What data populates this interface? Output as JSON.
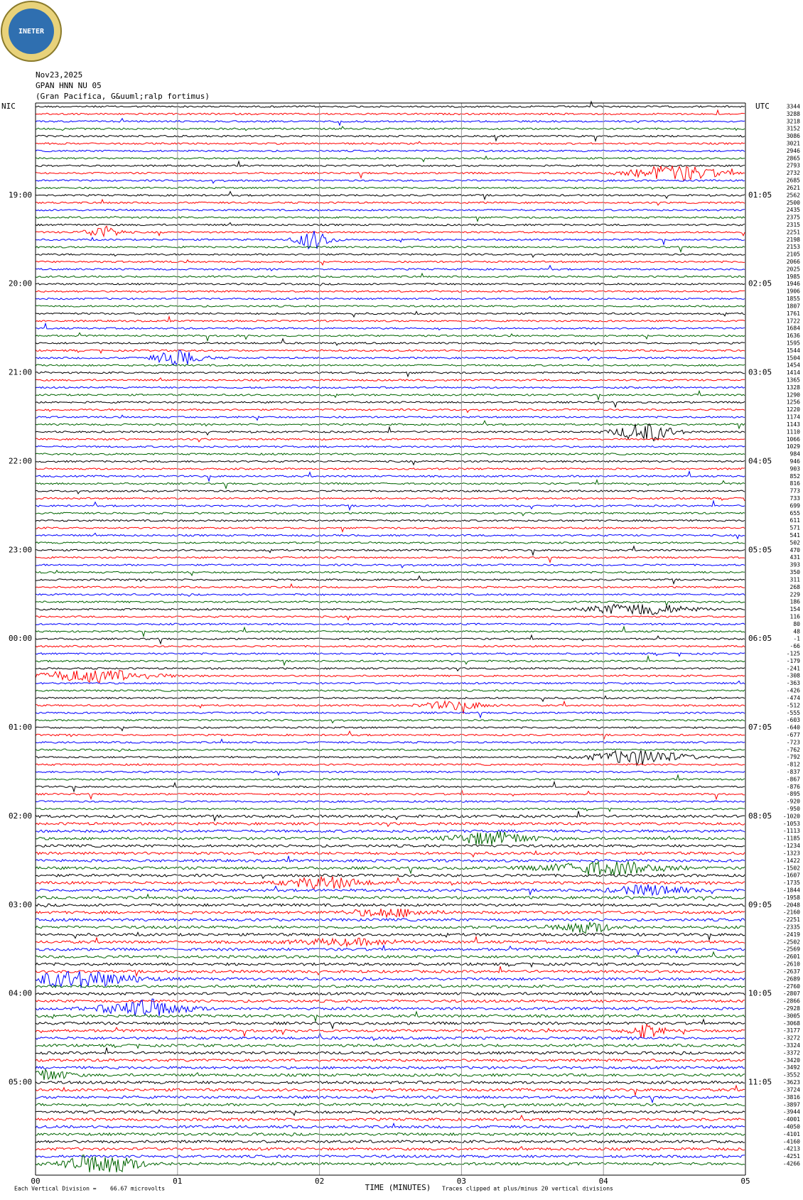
{
  "logo": {
    "text": "INETER"
  },
  "header": {
    "date": "Nov23,2025",
    "station": "GPAN HNN NU 05",
    "location": "(Gran Pacifica, G&uuml;ralp fortimus)"
  },
  "left_axis": {
    "title": "NIC",
    "labels": [
      "19:00",
      "20:00",
      "21:00",
      "22:00",
      "23:00",
      "00:00",
      "01:00",
      "02:00",
      "03:00",
      "04:00",
      "05:00"
    ]
  },
  "right_axis": {
    "title": "UTC",
    "labels": [
      "01:05",
      "02:05",
      "03:05",
      "04:05",
      "05:05",
      "06:05",
      "07:05",
      "08:05",
      "09:05",
      "10:05",
      "11:05"
    ]
  },
  "trace_offsets": [
    3344,
    3288,
    3218,
    3152,
    3086,
    3021,
    2946,
    2865,
    2793,
    2732,
    2685,
    2621,
    2562,
    2500,
    2435,
    2375,
    2315,
    2251,
    2198,
    2153,
    2105,
    2066,
    2025,
    1985,
    1946,
    1906,
    1855,
    1807,
    1761,
    1722,
    1684,
    1636,
    1595,
    1544,
    1504,
    1454,
    1414,
    1365,
    1328,
    1290,
    1256,
    1220,
    1174,
    1143,
    1110,
    1066,
    1029,
    984,
    946,
    903,
    852,
    816,
    773,
    733,
    699,
    655,
    611,
    571,
    541,
    502,
    470,
    431,
    393,
    350,
    311,
    268,
    229,
    186,
    154,
    116,
    80,
    48,
    -1,
    -66,
    -125,
    -179,
    -241,
    -308,
    -363,
    -426,
    -474,
    -512,
    -555,
    -603,
    -640,
    -677,
    -723,
    -762,
    -792,
    -812,
    -837,
    -867,
    -876,
    -895,
    -920,
    -950,
    -1020,
    -1053,
    -1113,
    -1185,
    -1234,
    -1323,
    -1422,
    -1502,
    -1607,
    -1735,
    -1844,
    -1958,
    -2048,
    -2160,
    -2251,
    -2335,
    -2419,
    -2502,
    -2569,
    -2601,
    -2610,
    -2637,
    -2689,
    -2760,
    -2807,
    -2866,
    -2928,
    -3005,
    -3068,
    -3177,
    -3272,
    -3324,
    -3372,
    -3420,
    -3492,
    -3552,
    -3623,
    -3724,
    -3816,
    -3897,
    -3944,
    -4001,
    -4050,
    -4101,
    -4160,
    -4213,
    -4251,
    -4266
  ],
  "trace_colors": [
    "#000000",
    "#ff0000",
    "#0000ff",
    "#006400"
  ],
  "x_axis": {
    "labels": [
      "00",
      "01",
      "02",
      "03",
      "04",
      "05"
    ],
    "title": "TIME (MINUTES)"
  },
  "footer": {
    "division": "Each Vertical Division =",
    "scale": "66.67 microvolts",
    "clip": "Traces clipped at plus/minus 20 vertical divisions"
  }
}
